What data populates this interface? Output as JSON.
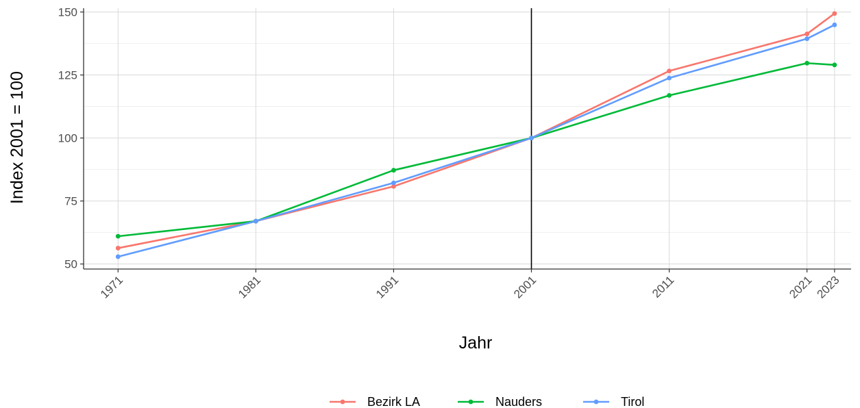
{
  "chart_data": {
    "type": "line",
    "xlabel": "Jahr",
    "ylabel": "Index 2001 = 100",
    "x": [
      1971,
      1981,
      1991,
      2001,
      2011,
      2021,
      2023
    ],
    "x_tick_labels": [
      "1971",
      "1981",
      "1991",
      "2001",
      "2011",
      "2021",
      "2023"
    ],
    "xlim": [
      1968.5,
      2024.2
    ],
    "ylim": [
      48,
      151.5
    ],
    "y_ticks": [
      50,
      75,
      100,
      125,
      150
    ],
    "y_tick_labels": [
      "50",
      "75",
      "100",
      "125",
      "150"
    ],
    "grid": true,
    "reference_line_x": 2001,
    "legend_position": "bottom",
    "series": [
      {
        "name": "Bezirk LA",
        "color": "#F8766D",
        "values": [
          56.3,
          67.0,
          80.8,
          100,
          126.6,
          141.3,
          149.4
        ]
      },
      {
        "name": "Nauders",
        "color": "#00BA38",
        "values": [
          61.0,
          67.0,
          87.2,
          100,
          116.9,
          129.7,
          129.0
        ]
      },
      {
        "name": "Tirol",
        "color": "#619CFF",
        "values": [
          52.9,
          67.0,
          82.2,
          100,
          123.8,
          139.4,
          144.9
        ]
      }
    ]
  }
}
